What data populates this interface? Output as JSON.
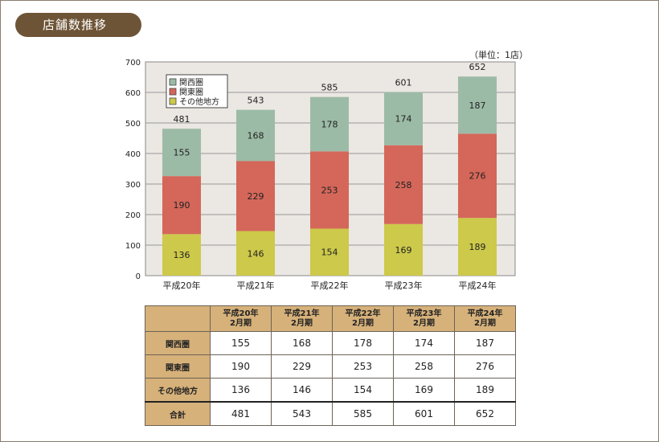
{
  "header": {
    "title": "店舗数推移"
  },
  "unit_label": "（単位：1店）",
  "colors": {
    "kansai": "#9cbba6",
    "kanto": "#d4675a",
    "other": "#cdc94a",
    "plot_bg": "#ebe7e2",
    "header_bg": "#d6b17a",
    "title_bg": "#6e5436"
  },
  "chart_data": {
    "type": "bar",
    "stacked": true,
    "categories": [
      "平成20年",
      "平成21年",
      "平成22年",
      "平成23年",
      "平成24年"
    ],
    "series": [
      {
        "name": "その他地方",
        "values": [
          136,
          146,
          154,
          169,
          189
        ],
        "color": "#cdc94a"
      },
      {
        "name": "関東圏",
        "values": [
          190,
          229,
          253,
          258,
          276
        ],
        "color": "#d4675a"
      },
      {
        "name": "関西圏",
        "values": [
          155,
          168,
          178,
          174,
          187
        ],
        "color": "#9cbba6"
      }
    ],
    "totals": [
      481,
      543,
      585,
      601,
      652
    ],
    "legend_order": [
      "関西圏",
      "関東圏",
      "その他地方"
    ],
    "legend_position": "top-left",
    "ylim": [
      0,
      700
    ],
    "yticks": [
      0,
      100,
      200,
      300,
      400,
      500,
      600,
      700
    ],
    "grid": true
  },
  "table": {
    "headers": [
      {
        "line1": "平成20年",
        "line2": "2月期"
      },
      {
        "line1": "平成21年",
        "line2": "2月期"
      },
      {
        "line1": "平成22年",
        "line2": "2月期"
      },
      {
        "line1": "平成23年",
        "line2": "2月期"
      },
      {
        "line1": "平成24年",
        "line2": "2月期"
      }
    ],
    "rows": [
      {
        "label": "関西圏",
        "values": [
          "155",
          "168",
          "178",
          "174",
          "187"
        ]
      },
      {
        "label": "関東圏",
        "values": [
          "190",
          "229",
          "253",
          "258",
          "276"
        ]
      },
      {
        "label": "その他地方",
        "values": [
          "136",
          "146",
          "154",
          "169",
          "189"
        ]
      },
      {
        "label": "合計",
        "values": [
          "481",
          "543",
          "585",
          "601",
          "652"
        ]
      }
    ]
  }
}
